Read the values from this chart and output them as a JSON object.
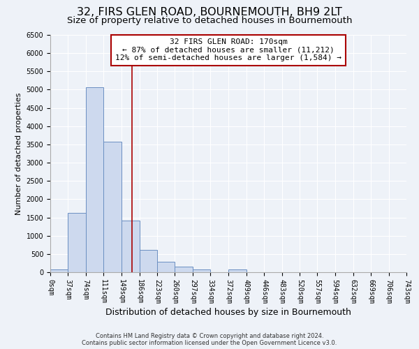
{
  "title": "32, FIRS GLEN ROAD, BOURNEMOUTH, BH9 2LT",
  "subtitle": "Size of property relative to detached houses in Bournemouth",
  "xlabel": "Distribution of detached houses by size in Bournemouth",
  "ylabel": "Number of detached properties",
  "bin_edges": [
    0,
    37,
    74,
    111,
    149,
    186,
    223,
    260,
    297,
    334,
    372,
    409,
    446,
    483,
    520,
    557,
    594,
    632,
    669,
    706,
    743
  ],
  "bar_heights": [
    80,
    1620,
    5070,
    3580,
    1420,
    610,
    295,
    150,
    80,
    0,
    70,
    0,
    0,
    0,
    0,
    0,
    0,
    0,
    0,
    0
  ],
  "bar_color": "#cdd9ee",
  "bar_edge_color": "#6b8fc2",
  "vertical_line_x": 170,
  "vertical_line_color": "#aa0000",
  "ylim": [
    0,
    6500
  ],
  "yticks": [
    0,
    500,
    1000,
    1500,
    2000,
    2500,
    3000,
    3500,
    4000,
    4500,
    5000,
    5500,
    6000,
    6500
  ],
  "annotation_title": "32 FIRS GLEN ROAD: 170sqm",
  "annotation_line1": "← 87% of detached houses are smaller (11,212)",
  "annotation_line2": "12% of semi-detached houses are larger (1,584) →",
  "annotation_box_color": "#ffffff",
  "annotation_box_edge_color": "#aa0000",
  "footer_line1": "Contains HM Land Registry data © Crown copyright and database right 2024.",
  "footer_line2": "Contains public sector information licensed under the Open Government Licence v3.0.",
  "background_color": "#eef2f8",
  "plot_background": "#eef2f8",
  "grid_color": "#ffffff",
  "title_fontsize": 11.5,
  "subtitle_fontsize": 9.5,
  "xlabel_fontsize": 9,
  "ylabel_fontsize": 8,
  "tick_label_fontsize": 7,
  "annotation_fontsize": 8,
  "footer_fontsize": 6
}
